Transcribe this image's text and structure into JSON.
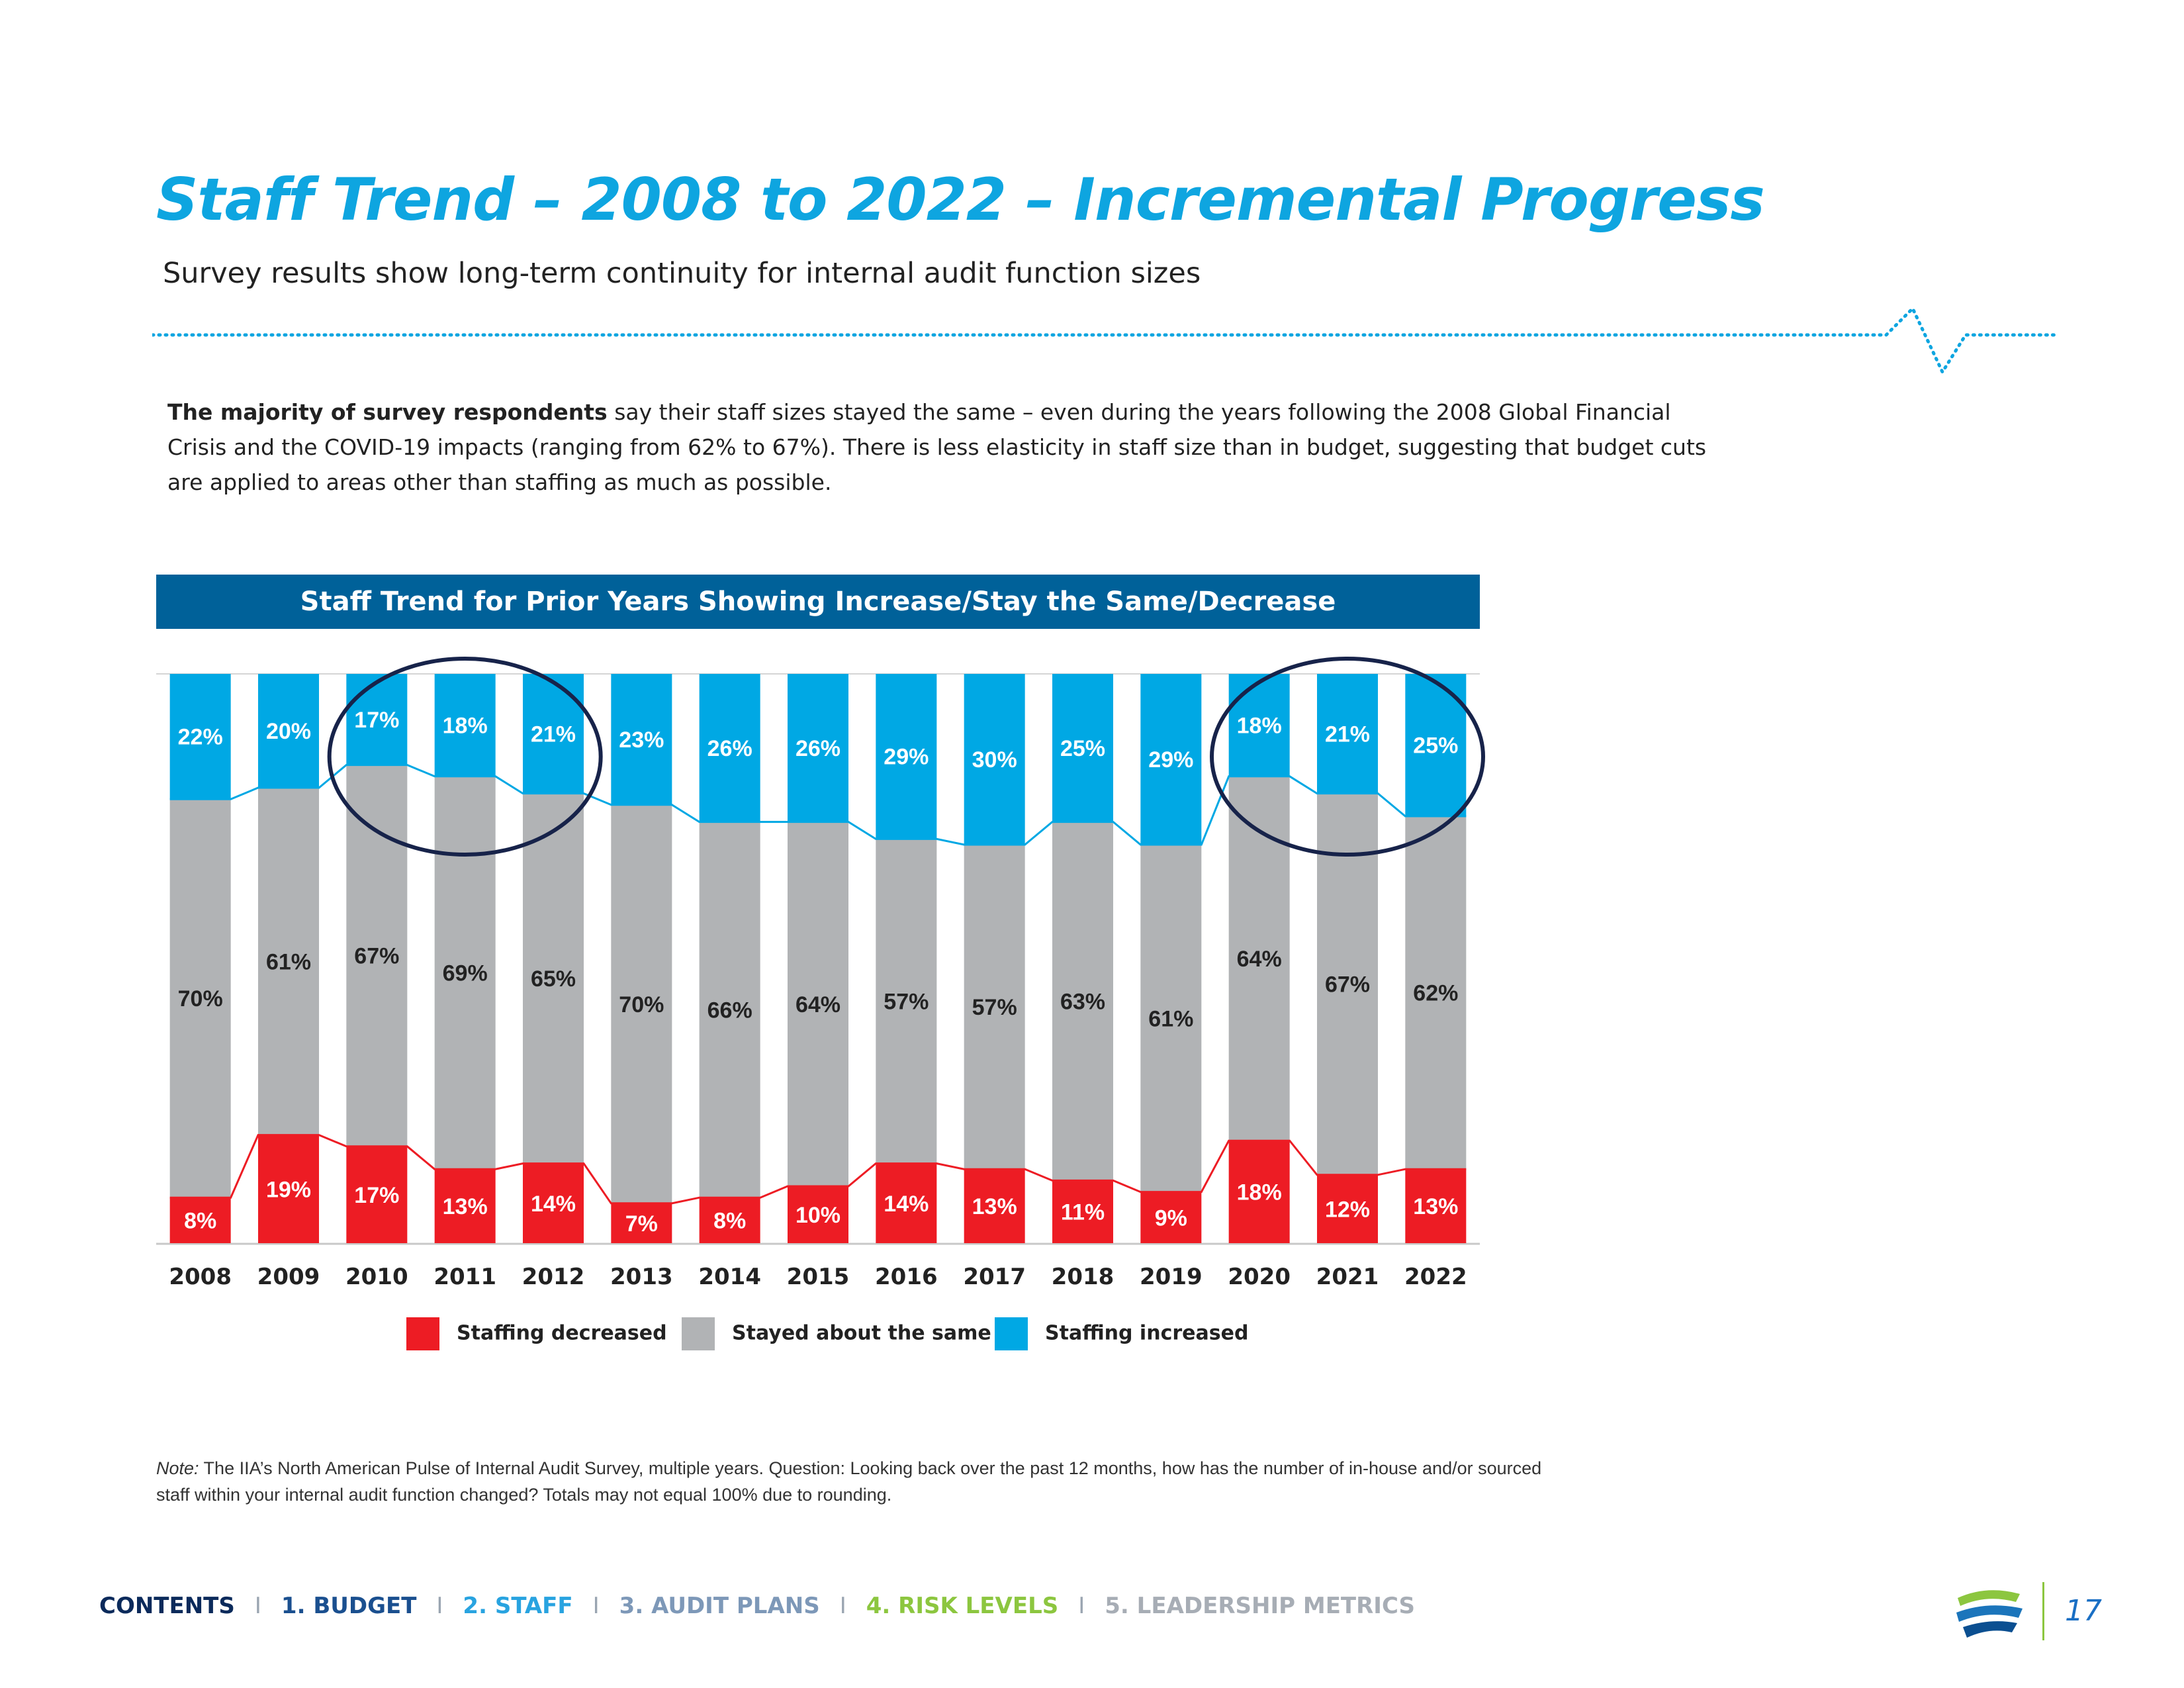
{
  "page": {
    "title": "Staff Trend – 2008 to 2022 – Incremental Progress",
    "subtitle": "Survey results show long-term continuity for internal audit function sizes",
    "intro_bold": "The majority of survey respondents",
    "intro_rest": " say their staff sizes stayed the same – even during the years following the 2008 Global Financial Crisis and the COVID-19 impacts (ranging from 62% to 67%). There is less elasticity in staff size than in budget, suggesting that budget cuts are applied to areas other than staffing as much as possible.",
    "note_label": "Note:",
    "note_text": " The IIA’s North American Pulse of Internal Audit Survey, multiple years. Question: Looking back over the past 12 months, how has the number of in-house and/or sourced staff within your internal audit function changed? Totals may not equal 100% due to rounding.",
    "page_number": "17"
  },
  "nav": {
    "separator": "I",
    "contents": "CONTENTS",
    "budget": "1. BUDGET",
    "staff": "2. STAFF",
    "audit_plans": "3. AUDIT PLANS",
    "risk_levels": "4. RISK LEVELS",
    "leadership": "5. LEADERSHIP METRICS"
  },
  "colors": {
    "title": "#0ea5e0",
    "decreased": "#ed1c24",
    "same": "#b1b3b5",
    "increased": "#00a8e4",
    "banner": "#006199",
    "highlight_circle": "#17234a"
  },
  "chart_data": {
    "type": "bar",
    "stacked": true,
    "title": "Staff Trend for Prior Years Showing Increase/Stay the Same/Decrease",
    "categories": [
      "2008",
      "2009",
      "2010",
      "2011",
      "2012",
      "2013",
      "2014",
      "2015",
      "2016",
      "2017",
      "2018",
      "2019",
      "2020",
      "2021",
      "2022"
    ],
    "series": [
      {
        "name": "Staffing decreased",
        "color": "#ed1c24",
        "values": [
          8,
          19,
          17,
          13,
          14,
          7,
          8,
          10,
          14,
          13,
          11,
          9,
          18,
          12,
          13
        ]
      },
      {
        "name": "Stayed about the same",
        "color": "#b1b3b5",
        "values": [
          70,
          61,
          67,
          69,
          65,
          70,
          66,
          64,
          57,
          57,
          63,
          61,
          64,
          67,
          62
        ]
      },
      {
        "name": "Staffing increased",
        "color": "#00a8e4",
        "values": [
          22,
          20,
          17,
          18,
          21,
          23,
          26,
          26,
          29,
          30,
          25,
          29,
          18,
          21,
          25
        ]
      }
    ],
    "ylim": [
      0,
      100
    ],
    "legend_position": "bottom",
    "highlighted_groups": [
      [
        "2010",
        "2011",
        "2012"
      ],
      [
        "2020",
        "2021",
        "2022"
      ]
    ]
  }
}
